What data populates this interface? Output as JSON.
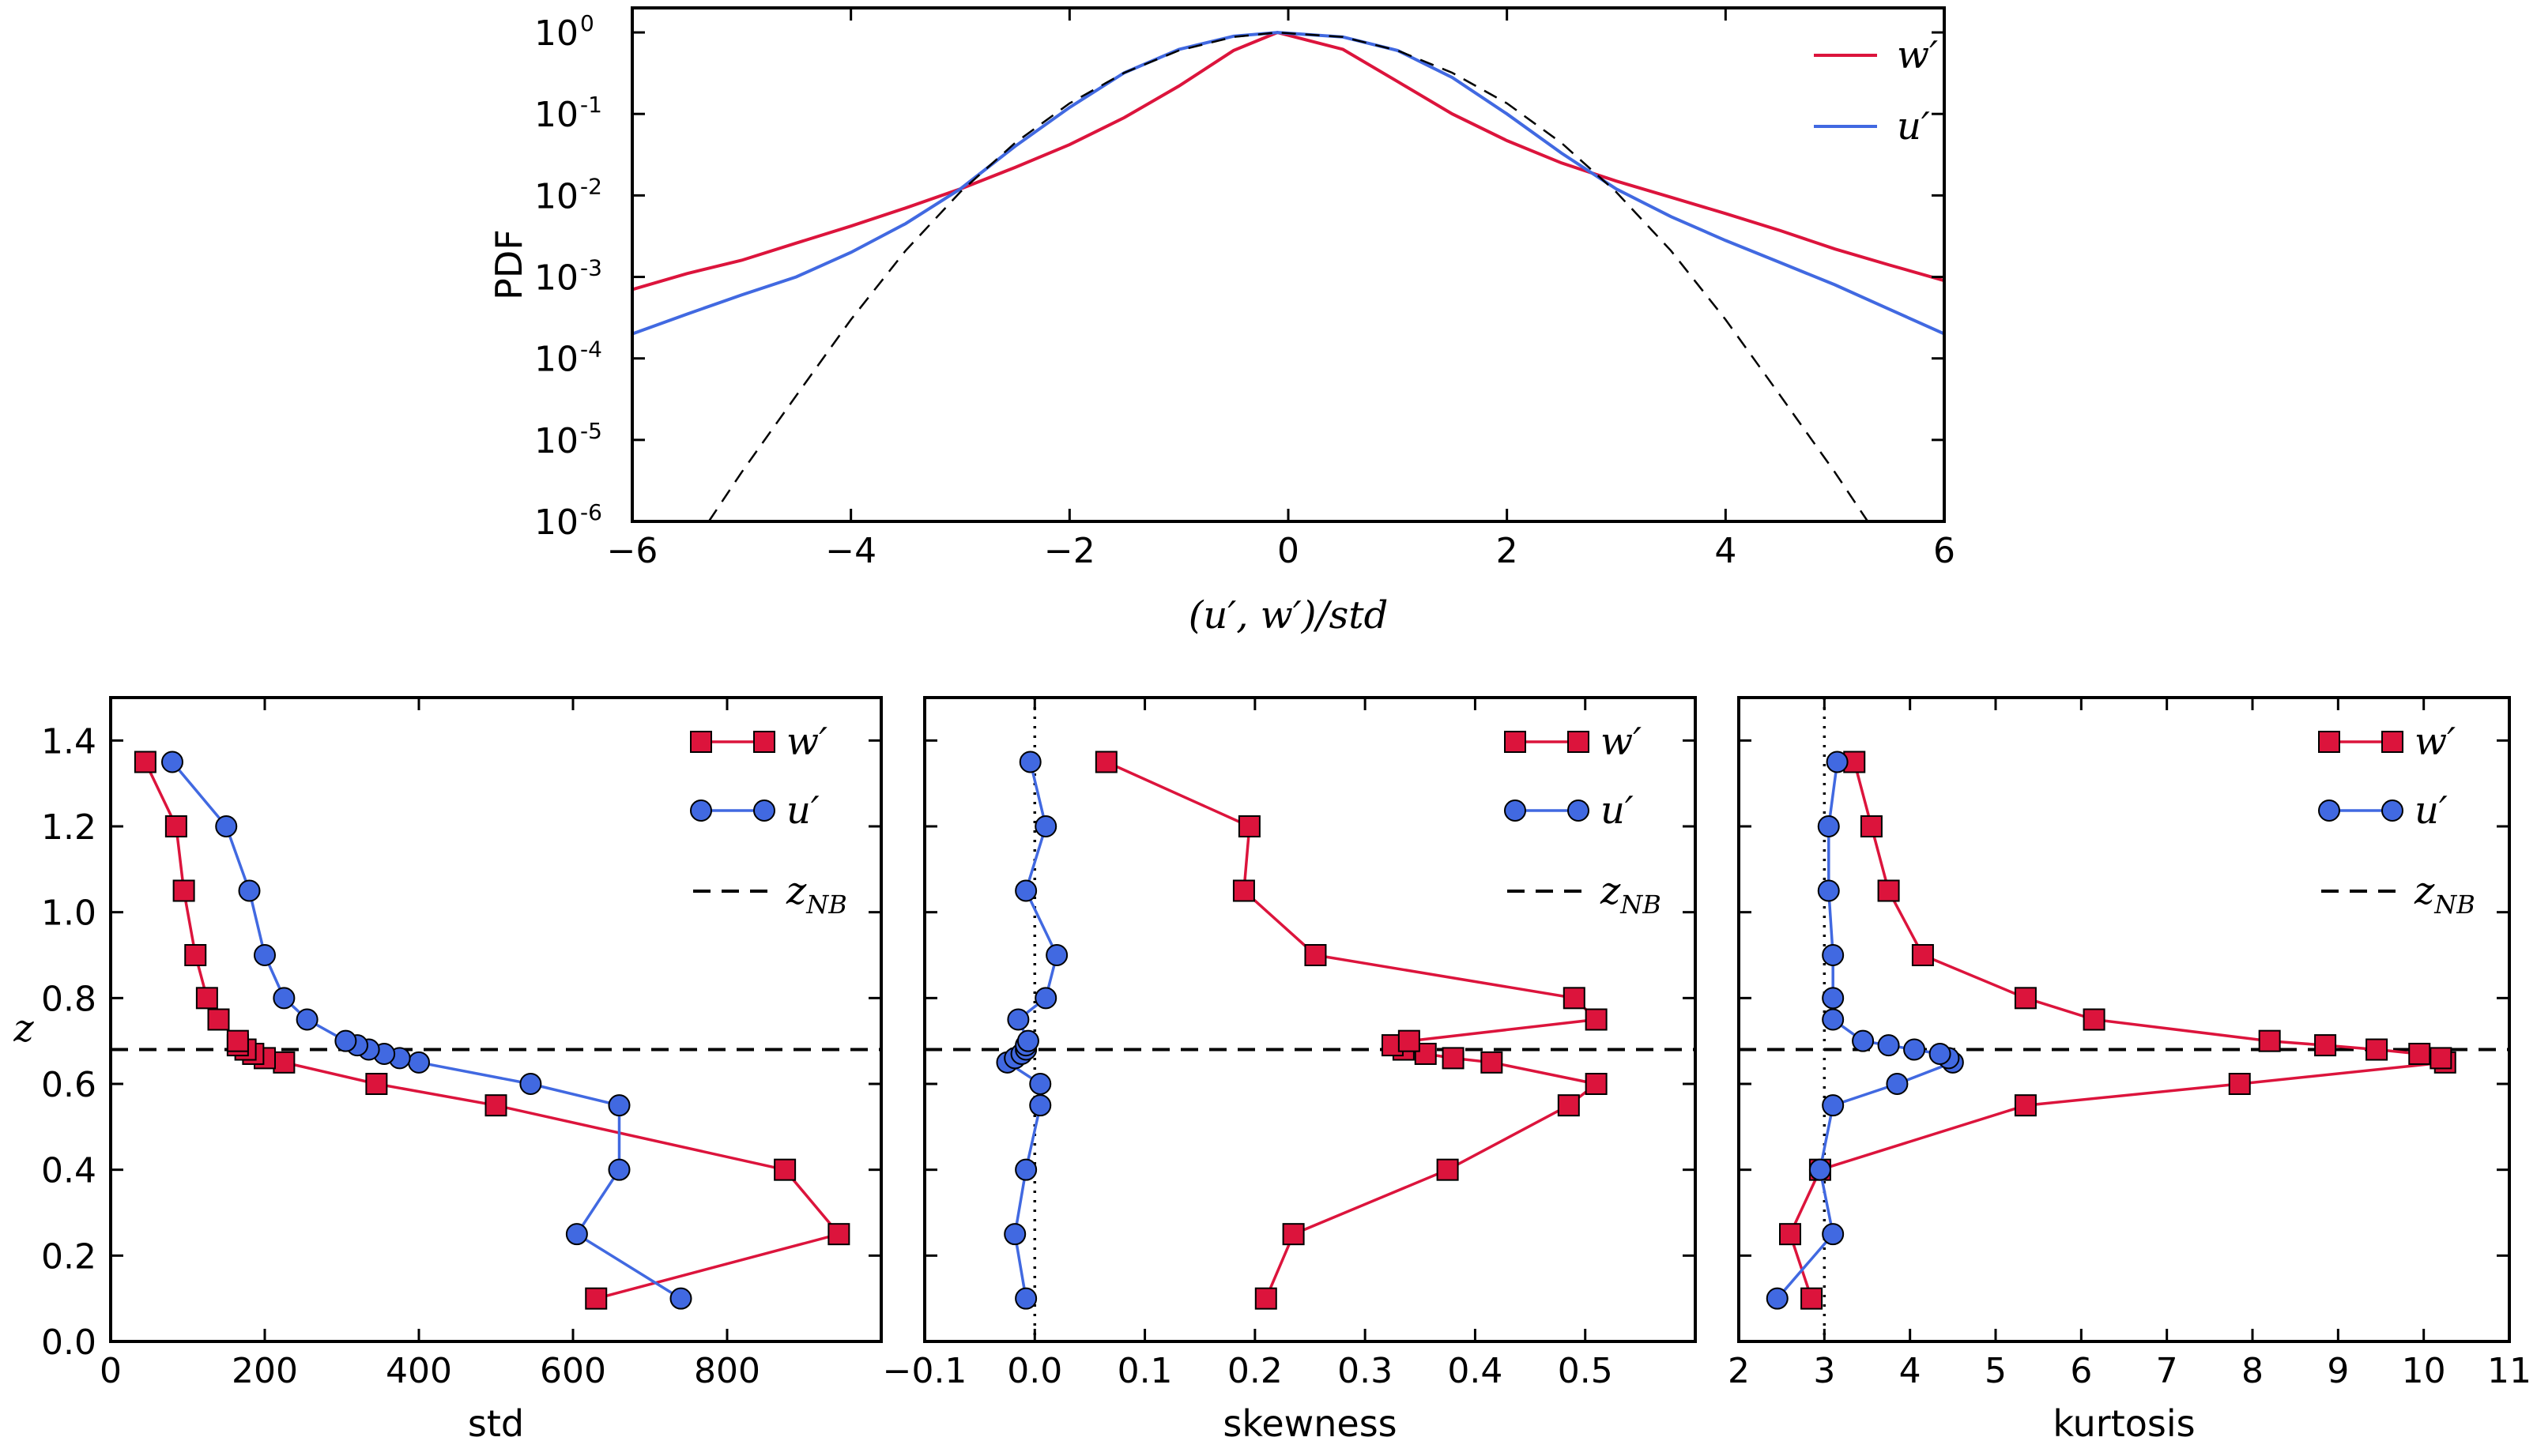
{
  "chart_data": [
    {
      "type": "line",
      "ylabel": "PDF",
      "xlabel": "(u′, w′)/std",
      "xlim": [
        -6,
        6
      ],
      "ylim": [
        1e-06,
        2
      ],
      "yscale": "log",
      "xticks": [
        -6,
        -4,
        -2,
        0,
        2,
        4,
        6
      ],
      "xtick_labels": [
        "−6",
        "−4",
        "−2",
        "0",
        "2",
        "4",
        "6"
      ],
      "yticks": [
        -6,
        -5,
        -4,
        -3,
        -2,
        -1,
        0
      ],
      "ytick_labels": [
        "10",
        "10",
        "10",
        "10",
        "10",
        "10",
        "10"
      ],
      "ytick_exponents": [
        "-6",
        "-5",
        "-4",
        "-3",
        "-2",
        "-1",
        "0"
      ],
      "legend_position": "top-right",
      "series": [
        {
          "name": "w′",
          "color": "#dc143c",
          "x": [
            -6,
            -5.5,
            -5,
            -4.5,
            -4,
            -3.5,
            -3,
            -2.5,
            -2,
            -1.5,
            -1,
            -0.5,
            -0.1,
            0.5,
            1,
            1.5,
            2,
            2.5,
            3,
            3.5,
            4,
            4.5,
            5,
            5.5,
            6
          ],
          "y": [
            0.0007,
            0.0011,
            0.0016,
            0.0026,
            0.0042,
            0.007,
            0.012,
            0.022,
            0.042,
            0.09,
            0.22,
            0.6,
            1.0,
            0.62,
            0.25,
            0.1,
            0.047,
            0.025,
            0.015,
            0.0095,
            0.006,
            0.0037,
            0.0022,
            0.0014,
            0.0009
          ]
        },
        {
          "name": "u′",
          "color": "#4169e1",
          "x": [
            -6,
            -5.5,
            -5,
            -4.5,
            -4,
            -3.5,
            -3,
            -2.5,
            -2,
            -1.5,
            -1,
            -0.5,
            -0.1,
            0.5,
            1,
            1.5,
            2,
            2.5,
            3,
            3.5,
            4,
            4.5,
            5,
            5.5,
            6
          ],
          "y": [
            0.0002,
            0.00035,
            0.0006,
            0.001,
            0.002,
            0.0045,
            0.012,
            0.04,
            0.12,
            0.32,
            0.62,
            0.9,
            1.0,
            0.88,
            0.6,
            0.28,
            0.1,
            0.033,
            0.012,
            0.0055,
            0.0028,
            0.0015,
            0.0008,
            0.0004,
            0.0002
          ]
        },
        {
          "name": "",
          "color": "#000000",
          "style": "dashed",
          "x": [
            -5.3,
            -5,
            -4.5,
            -4,
            -3.5,
            -3,
            -2.5,
            -2,
            -1.5,
            -1,
            -0.5,
            -0.1,
            0.5,
            1,
            1.5,
            2,
            2.5,
            3,
            3.5,
            4,
            4.5,
            5,
            5.3
          ],
          "y": [
            1e-06,
            4e-06,
            3.5e-05,
            0.0003,
            0.0021,
            0.011,
            0.044,
            0.135,
            0.32,
            0.6,
            0.88,
            1.0,
            0.88,
            0.6,
            0.32,
            0.135,
            0.044,
            0.011,
            0.0021,
            0.0003,
            3.5e-05,
            4e-06,
            1e-06
          ]
        }
      ]
    },
    {
      "type": "line",
      "xlabel": "std",
      "ylabel": "z",
      "xlim": [
        0,
        1000
      ],
      "ylim": [
        0,
        1.5
      ],
      "xticks": [
        0,
        200,
        400,
        600,
        800
      ],
      "xtick_labels": [
        "0",
        "200",
        "400",
        "600",
        "800"
      ],
      "yticks": [
        0,
        0.2,
        0.4,
        0.6,
        0.8,
        1.0,
        1.2,
        1.4
      ],
      "ytick_labels": [
        "0.0",
        "0.2",
        "0.4",
        "0.6",
        "0.8",
        "1.0",
        "1.2",
        "1.4"
      ],
      "hline": {
        "y": 0.68,
        "name": "z_NB",
        "style": "dashed"
      },
      "legend_position": "top-right",
      "series": [
        {
          "name": "w′",
          "color": "#dc143c",
          "marker": "square",
          "x": [
            630,
            945,
            875,
            500,
            345,
            225,
            200,
            185,
            175,
            165
          ],
          "y": [
            0.1,
            0.25,
            0.4,
            0.55,
            0.6,
            0.65,
            0.66,
            0.67,
            0.68,
            0.69
          ],
          "x_upper": [
            165,
            140,
            125,
            110,
            95,
            85,
            45
          ],
          "y_upper": [
            0.7,
            0.75,
            0.8,
            0.9,
            1.05,
            1.2,
            1.35
          ]
        },
        {
          "name": "u′",
          "color": "#4169e1",
          "marker": "circle",
          "x": [
            740,
            605,
            660,
            660,
            545,
            400,
            375,
            355,
            335,
            320,
            305,
            255,
            225,
            200,
            180,
            150,
            80
          ],
          "y": [
            0.1,
            0.25,
            0.4,
            0.55,
            0.6,
            0.65,
            0.66,
            0.67,
            0.68,
            0.69,
            0.7,
            0.75,
            0.8,
            0.9,
            1.05,
            1.2,
            1.35
          ]
        }
      ]
    },
    {
      "type": "line",
      "xlabel": "skewness",
      "xlim": [
        -0.1,
        0.6
      ],
      "ylim": [
        0,
        1.5
      ],
      "xticks": [
        -0.1,
        0.0,
        0.1,
        0.2,
        0.3,
        0.4,
        0.5
      ],
      "xtick_labels": [
        "−0.1",
        "0.0",
        "0.1",
        "0.2",
        "0.3",
        "0.4",
        "0.5"
      ],
      "vline": {
        "x": 0.0,
        "style": "dotted"
      },
      "hline": {
        "y": 0.68,
        "name": "z_NB",
        "style": "dashed"
      },
      "legend_position": "top-right",
      "series": [
        {
          "name": "w′",
          "color": "#dc143c",
          "marker": "square",
          "x": [
            0.21,
            0.235,
            0.375,
            0.485,
            0.51,
            0.415,
            0.38,
            0.355,
            0.335,
            0.325,
            0.34,
            0.51,
            0.49,
            0.255,
            0.19,
            0.195,
            0.065
          ],
          "y": [
            0.1,
            0.25,
            0.4,
            0.55,
            0.6,
            0.65,
            0.66,
            0.67,
            0.68,
            0.69,
            0.7,
            0.75,
            0.8,
            0.9,
            1.05,
            1.2,
            1.35
          ]
        },
        {
          "name": "u′",
          "color": "#4169e1",
          "marker": "circle",
          "x": [
            -0.008,
            -0.018,
            -0.008,
            0.005,
            0.005,
            -0.025,
            -0.018,
            -0.012,
            -0.008,
            -0.008,
            -0.006,
            -0.015,
            0.01,
            0.02,
            -0.008,
            0.01,
            -0.004
          ],
          "y": [
            0.1,
            0.25,
            0.4,
            0.55,
            0.6,
            0.65,
            0.66,
            0.67,
            0.68,
            0.69,
            0.7,
            0.75,
            0.8,
            0.9,
            1.05,
            1.2,
            1.35
          ]
        }
      ]
    },
    {
      "type": "line",
      "xlabel": "kurtosis",
      "xlim": [
        2,
        11
      ],
      "ylim": [
        0,
        1.5
      ],
      "xticks": [
        2,
        3,
        4,
        5,
        6,
        7,
        8,
        9,
        10,
        11
      ],
      "xtick_labels": [
        "2",
        "3",
        "4",
        "5",
        "6",
        "7",
        "8",
        "9",
        "10",
        "11"
      ],
      "vline": {
        "x": 3.0,
        "style": "dotted"
      },
      "hline": {
        "y": 0.68,
        "name": "z_NB",
        "style": "dashed"
      },
      "legend_position": "top-right",
      "series": [
        {
          "name": "w′",
          "color": "#dc143c",
          "marker": "square",
          "x": [
            2.85,
            2.6,
            2.95,
            5.35,
            7.85,
            10.25,
            10.2,
            9.95,
            9.45,
            8.85,
            8.2,
            6.15,
            5.35,
            4.15,
            3.75,
            3.55,
            3.35
          ],
          "y": [
            0.1,
            0.25,
            0.4,
            0.55,
            0.6,
            0.65,
            0.66,
            0.67,
            0.68,
            0.69,
            0.7,
            0.75,
            0.8,
            0.9,
            1.05,
            1.2,
            1.35
          ]
        },
        {
          "name": "u′",
          "color": "#4169e1",
          "marker": "circle",
          "x": [
            2.45,
            3.1,
            2.95,
            3.1,
            3.85,
            4.5,
            4.45,
            4.35,
            4.05,
            3.75,
            3.45,
            3.1,
            3.1,
            3.1,
            3.05,
            3.05,
            3.15
          ],
          "y": [
            0.1,
            0.25,
            0.4,
            0.55,
            0.6,
            0.65,
            0.66,
            0.67,
            0.68,
            0.69,
            0.7,
            0.75,
            0.8,
            0.9,
            1.05,
            1.2,
            1.35
          ]
        }
      ]
    }
  ]
}
